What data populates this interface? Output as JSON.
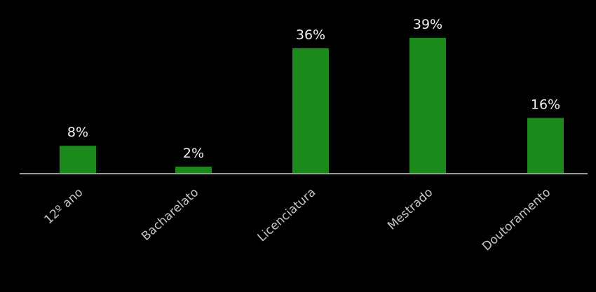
{
  "chart_data": {
    "type": "bar",
    "categories": [
      "12º ano",
      "Bacharelato",
      "Licenciatura",
      "Mestrado",
      "Doutoramento"
    ],
    "values": [
      8,
      2,
      36,
      39,
      16
    ],
    "data_labels": [
      "8%",
      "2%",
      "36%",
      "39%",
      "16%"
    ],
    "unit": "%",
    "ylim": [
      0,
      40
    ],
    "grid": false,
    "legend": "none",
    "colors": {
      "bar": "#1a8a1a",
      "background": "#000000",
      "axis": "#9a9a9a",
      "label": "#f2f2f2",
      "category_label": "#c8c8c8"
    }
  }
}
